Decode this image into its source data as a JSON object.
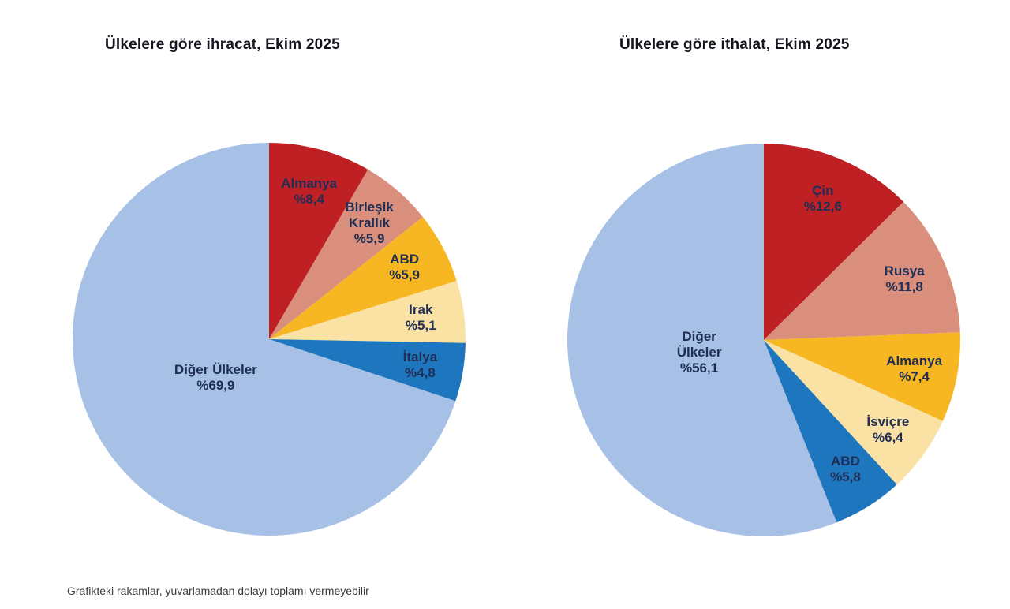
{
  "page": {
    "background": "#ffffff",
    "footnote": "Grafikteki rakamlar, yuvarlamadan dolayı toplamı vermeyebilir",
    "title_color": "#15151f",
    "label_color": "#1f2e55"
  },
  "chart_data": [
    {
      "type": "pie",
      "title": "Ülkelere göre ihracat, Ekim 2025",
      "unit": "percent",
      "start_angle_deg": 0,
      "direction": "clockwise",
      "legend": "none",
      "slices": [
        {
          "label": "Almanya",
          "value": 8.4,
          "display": "%8,4",
          "color": "#BF2024",
          "label_lines": [
            "Almanya",
            "%8,4"
          ]
        },
        {
          "label": "Birleşik Krallık",
          "value": 5.9,
          "display": "%5,9",
          "color": "#DA8F7D",
          "label_lines": [
            "Birleşik",
            "Krallık",
            "%5,9"
          ]
        },
        {
          "label": "ABD",
          "value": 5.9,
          "display": "%5,9",
          "color": "#F7B722",
          "label_lines": [
            "ABD",
            "%5,9"
          ]
        },
        {
          "label": "Irak",
          "value": 5.1,
          "display": "%5,1",
          "color": "#FAE1A4",
          "label_lines": [
            "Irak",
            "%5,1"
          ]
        },
        {
          "label": "İtalya",
          "value": 4.8,
          "display": "%4,8",
          "color": "#1E77BE",
          "label_lines": [
            "İtalya",
            "%4,8"
          ]
        },
        {
          "label": "Diğer Ülkeler",
          "value": 69.9,
          "display": "%69,9",
          "color": "#A6C0E6",
          "label_lines": [
            "Diğer Ülkeler",
            "%69,9"
          ]
        }
      ]
    },
    {
      "type": "pie",
      "title": "Ülkelere göre ithalat, Ekim 2025",
      "unit": "percent",
      "start_angle_deg": 0,
      "direction": "clockwise",
      "legend": "none",
      "slices": [
        {
          "label": "Çin",
          "value": 12.6,
          "display": "%12,6",
          "color": "#BF2024",
          "label_lines": [
            "Çin",
            "%12,6"
          ]
        },
        {
          "label": "Rusya",
          "value": 11.8,
          "display": "%11,8",
          "color": "#DA8F7D",
          "label_lines": [
            "Rusya",
            "%11,8"
          ]
        },
        {
          "label": "Almanya",
          "value": 7.4,
          "display": "%7,4",
          "color": "#F7B722",
          "label_lines": [
            "Almanya",
            "%7,4"
          ]
        },
        {
          "label": "İsviçre",
          "value": 6.4,
          "display": "%6,4",
          "color": "#FAE1A4",
          "label_lines": [
            "İsviçre",
            "%6,4"
          ]
        },
        {
          "label": "ABD",
          "value": 5.8,
          "display": "%5,8",
          "color": "#1E77BE",
          "label_lines": [
            "ABD",
            "%5,8"
          ]
        },
        {
          "label": "Diğer Ülkeler",
          "value": 56.1,
          "display": "%56,1",
          "color": "#A6C0E6",
          "label_lines": [
            "Diğer",
            "Ülkeler",
            "%56,1"
          ]
        }
      ]
    }
  ]
}
